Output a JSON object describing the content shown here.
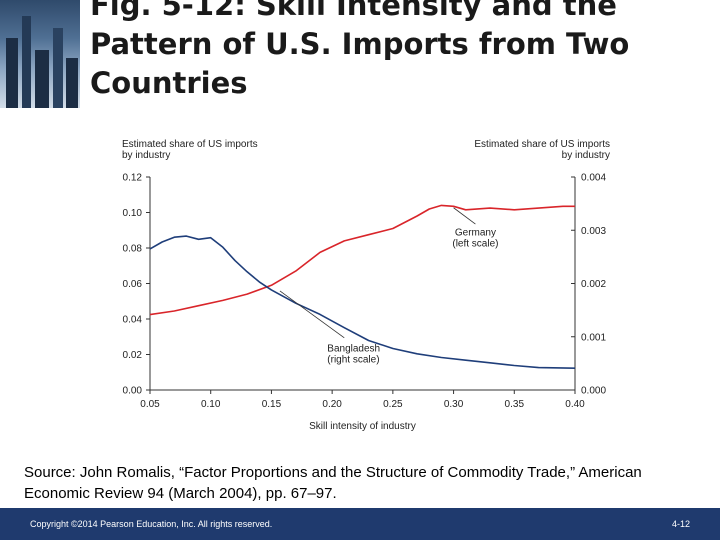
{
  "slide": {
    "title": "Fig. 5-12:  Skill Intensity and the Pattern of U.S. Imports from Two Countries",
    "source": "Source: John Romalis, “Factor Proportions and the Structure of Commodity Trade,” American Economic Review 94 (March 2004), pp. 67–97.",
    "footer_copyright": "Copyright ©2014 Pearson Education, Inc. All rights reserved.",
    "footer_page": "4-12"
  },
  "chart_data": {
    "type": "line",
    "xlabel": "Skill intensity of industry",
    "ylabel_left": [
      "Estimated share of US imports",
      "by industry"
    ],
    "ylabel_right": [
      "Estimated share of US imports",
      "by industry"
    ],
    "xlim": [
      0.05,
      0.4
    ],
    "ylim_left": [
      0,
      0.12
    ],
    "ylim_right": [
      0,
      0.004
    ],
    "x_ticks": [
      "0.05",
      "0.10",
      "0.15",
      "0.20",
      "0.25",
      "0.30",
      "0.35",
      "0.40"
    ],
    "y_ticks_left": [
      "0.00",
      "0.02",
      "0.04",
      "0.06",
      "0.08",
      "0.10",
      "0.12"
    ],
    "y_ticks_right": [
      "0.000",
      "0.001",
      "0.002",
      "0.003",
      "0.004"
    ],
    "grid": false,
    "series": [
      {
        "name": "Germany",
        "label": [
          "Germany",
          "(left scale)"
        ],
        "axis": "left",
        "color": "#d9252a",
        "points": [
          [
            0.05,
            0.0425
          ],
          [
            0.07,
            0.0445
          ],
          [
            0.09,
            0.0475
          ],
          [
            0.11,
            0.0505
          ],
          [
            0.13,
            0.054
          ],
          [
            0.15,
            0.059
          ],
          [
            0.17,
            0.067
          ],
          [
            0.19,
            0.0775
          ],
          [
            0.21,
            0.084
          ],
          [
            0.23,
            0.0875
          ],
          [
            0.25,
            0.091
          ],
          [
            0.27,
            0.098
          ],
          [
            0.28,
            0.102
          ],
          [
            0.29,
            0.104
          ],
          [
            0.3,
            0.1035
          ],
          [
            0.31,
            0.1015
          ],
          [
            0.33,
            0.1025
          ],
          [
            0.35,
            0.1015
          ],
          [
            0.37,
            0.1025
          ],
          [
            0.39,
            0.1035
          ],
          [
            0.4,
            0.1035
          ]
        ]
      },
      {
        "name": "Bangladesh",
        "label": [
          "Bangladesh",
          "(right scale)"
        ],
        "axis": "right",
        "color": "#1f3e7a",
        "points": [
          [
            0.05,
            0.00265
          ],
          [
            0.06,
            0.00278
          ],
          [
            0.07,
            0.00287
          ],
          [
            0.08,
            0.00289
          ],
          [
            0.09,
            0.00283
          ],
          [
            0.1,
            0.00286
          ],
          [
            0.11,
            0.00268
          ],
          [
            0.12,
            0.00243
          ],
          [
            0.13,
            0.00222
          ],
          [
            0.14,
            0.00203
          ],
          [
            0.15,
            0.00188
          ],
          [
            0.17,
            0.00163
          ],
          [
            0.19,
            0.00142
          ],
          [
            0.21,
            0.00117
          ],
          [
            0.23,
            0.00093
          ],
          [
            0.25,
            0.00078
          ],
          [
            0.27,
            0.00068
          ],
          [
            0.29,
            0.00061
          ],
          [
            0.31,
            0.00056
          ],
          [
            0.33,
            0.00051
          ],
          [
            0.35,
            0.00046
          ],
          [
            0.37,
            0.00042
          ],
          [
            0.4,
            0.00041
          ]
        ]
      }
    ]
  }
}
